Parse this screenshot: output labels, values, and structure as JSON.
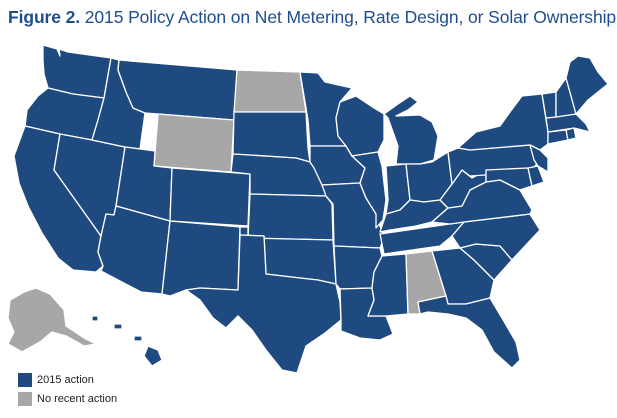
{
  "title": {
    "figure_label": "Figure 2.",
    "text": "2015 Policy Action on Net Metering, Rate Design, or Solar Ownership"
  },
  "colors": {
    "action": "#1f4a80",
    "no_action": "#a7a7a7",
    "title": "#1f4e8c"
  },
  "legend": [
    {
      "label": "2015 action",
      "key": "action"
    },
    {
      "label": "No recent action",
      "key": "no_action"
    }
  ],
  "states": {
    "Washington": "action",
    "Oregon": "action",
    "California": "action",
    "Nevada": "action",
    "Idaho": "action",
    "Montana": "action",
    "Wyoming": "no_action",
    "Utah": "action",
    "Arizona": "action",
    "Colorado": "action",
    "New Mexico": "action",
    "North Dakota": "no_action",
    "South Dakota": "action",
    "Nebraska": "action",
    "Kansas": "action",
    "Oklahoma": "action",
    "Texas": "action",
    "Minnesota": "action",
    "Iowa": "action",
    "Missouri": "action",
    "Arkansas": "action",
    "Louisiana": "action",
    "Wisconsin": "action",
    "Illinois": "action",
    "Michigan": "action",
    "Indiana": "action",
    "Ohio": "action",
    "Kentucky": "action",
    "Tennessee": "action",
    "Mississippi": "action",
    "Alabama": "no_action",
    "Georgia": "action",
    "Florida": "action",
    "South Carolina": "action",
    "North Carolina": "action",
    "Virginia": "action",
    "West Virginia": "action",
    "Pennsylvania": "action",
    "New York": "action",
    "Maryland": "action",
    "Delaware": "action",
    "New Jersey": "action",
    "Connecticut": "action",
    "Rhode Island": "action",
    "Massachusetts": "action",
    "Vermont": "action",
    "New Hampshire": "action",
    "Maine": "action",
    "Alaska": "no_action",
    "Hawaii": "action"
  }
}
